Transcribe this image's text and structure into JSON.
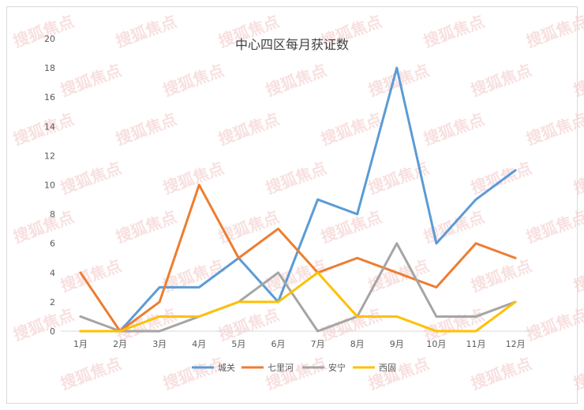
{
  "chart_data": {
    "type": "line",
    "title": "中心四区每月获证数",
    "categories": [
      "1月",
      "2月",
      "3月",
      "4月",
      "5月",
      "6月",
      "7月",
      "8月",
      "9月",
      "10月",
      "11月",
      "12月"
    ],
    "ylim": [
      0,
      20
    ],
    "yticks": [
      0,
      2,
      4,
      6,
      8,
      10,
      12,
      14,
      16,
      18,
      20
    ],
    "grid": false,
    "legend_position": "bottom",
    "series": [
      {
        "name": "城关",
        "color": "#5b9bd5",
        "values": [
          0,
          0,
          3,
          3,
          5,
          2,
          9,
          8,
          18,
          6,
          9,
          11
        ]
      },
      {
        "name": "七里河",
        "color": "#ed7d31",
        "values": [
          4,
          0,
          2,
          10,
          5,
          7,
          4,
          5,
          4,
          3,
          6,
          5
        ]
      },
      {
        "name": "安宁",
        "color": "#a5a5a5",
        "values": [
          1,
          0,
          0,
          1,
          2,
          4,
          0,
          1,
          6,
          1,
          1,
          2
        ]
      },
      {
        "name": "西固",
        "color": "#ffc000",
        "values": [
          0,
          0,
          1,
          1,
          2,
          2,
          4,
          1,
          1,
          0,
          0,
          2
        ]
      }
    ]
  },
  "watermark": "搜狐焦点"
}
